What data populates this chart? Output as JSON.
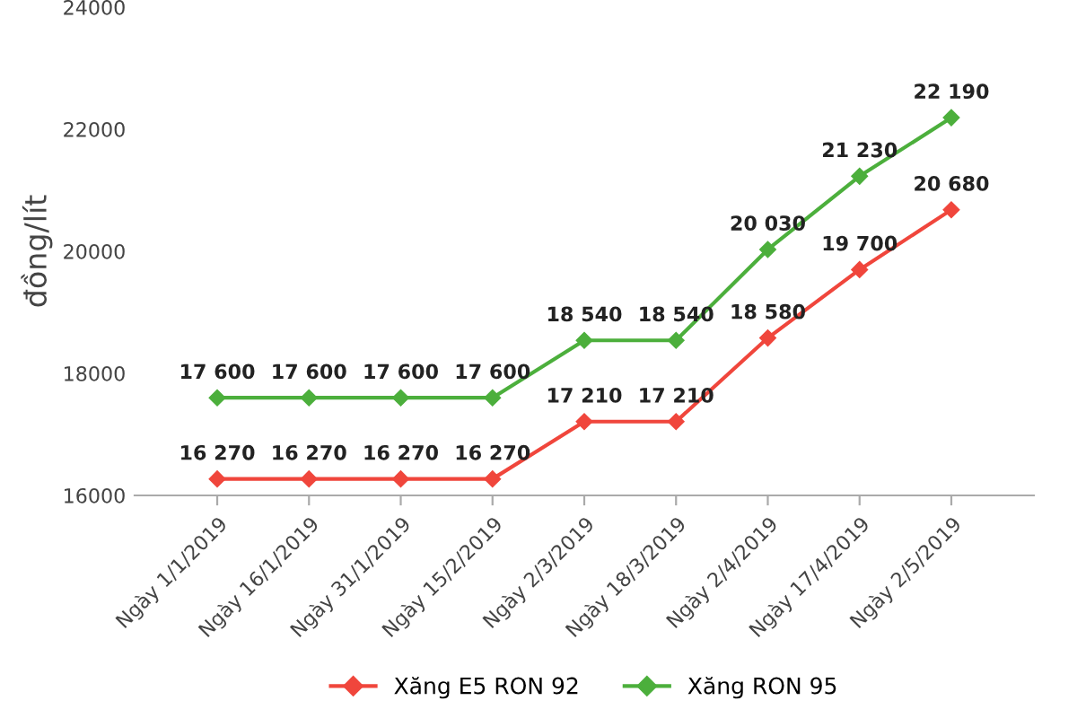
{
  "chart_data": {
    "type": "line",
    "ylabel": "đồng/lít",
    "categories": [
      "Ngày 1/1/2019",
      "Ngày 16/1/2019",
      "Ngày 31/1/2019",
      "Ngày 15/2/2019",
      "Ngày 2/3/2019",
      "Ngày 18/3/2019",
      "Ngày 2/4/2019",
      "Ngày 17/4/2019",
      "Ngày 2/5/2019"
    ],
    "series": [
      {
        "name": "Xăng E5 RON 92",
        "color": "#f0463c",
        "values": [
          16270,
          16270,
          16270,
          16270,
          17210,
          17210,
          18580,
          19700,
          20680
        ],
        "value_labels": [
          "16 270",
          "16 270",
          "16 270",
          "16 270",
          "17 210",
          "17 210",
          "18 580",
          "19 700",
          "20 680"
        ]
      },
      {
        "name": "Xăng RON 95",
        "color": "#4caf3c",
        "values": [
          17600,
          17600,
          17600,
          17600,
          18540,
          18540,
          20030,
          21230,
          22190
        ],
        "value_labels": [
          "17 600",
          "17 600",
          "17 600",
          "17 600",
          "18 540",
          "18 540",
          "20 030",
          "21 230",
          "22 190"
        ]
      }
    ],
    "ylim": [
      16000,
      24000
    ],
    "yticks": [
      16000,
      18000,
      20000,
      22000,
      24000
    ],
    "grid": false,
    "legend": "bottom",
    "marker": "diamond",
    "line_style": "solid"
  }
}
